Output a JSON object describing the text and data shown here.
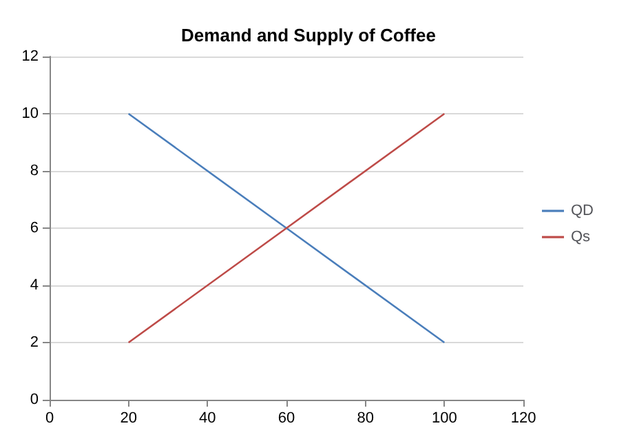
{
  "chart_data": {
    "type": "line",
    "title": "Demand and Supply of Coffee",
    "x": [
      20,
      60,
      100
    ],
    "series": [
      {
        "name": "QD",
        "color": "#4a7ebb",
        "values": [
          10,
          6,
          2
        ]
      },
      {
        "name": "Qs",
        "color": "#be4b48",
        "values": [
          2,
          6,
          10
        ]
      }
    ],
    "xlim": [
      0,
      120
    ],
    "xticks": [
      0,
      20,
      40,
      60,
      80,
      100,
      120
    ],
    "ylim": [
      0,
      12
    ],
    "yticks": [
      0,
      2,
      4,
      6,
      8,
      10,
      12
    ],
    "grid": "y",
    "legend": "right",
    "marker": "none"
  }
}
